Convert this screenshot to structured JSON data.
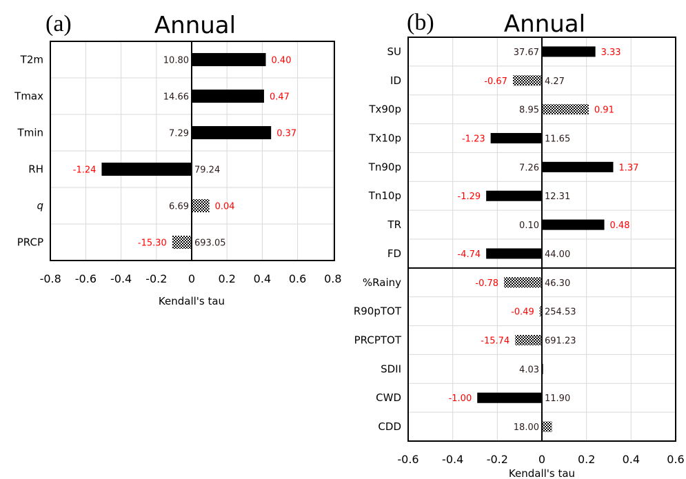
{
  "chart_data": [
    {
      "type": "bar",
      "orientation": "horizontal",
      "panel": "(a)",
      "title": "Annual",
      "xlabel": "Kendall's tau",
      "xlim": [
        -0.8,
        0.8
      ],
      "xticks": [
        -0.8,
        -0.6,
        -0.4,
        -0.2,
        0,
        0.2,
        0.4,
        0.6,
        0.8
      ],
      "xtick_labels": [
        "-0.8",
        "-0.6",
        "-0.4",
        "-0.2",
        "0",
        "0.2",
        "0.4",
        "0.6",
        "0.8"
      ],
      "grid": true,
      "categories": [
        "T2m",
        "Tmax",
        "Tmin",
        "RH",
        "q",
        "PRCP"
      ],
      "italic_categories": [
        "q"
      ],
      "values": [
        0.42,
        0.41,
        0.45,
        -0.51,
        0.1,
        -0.11
      ],
      "fill": [
        "solid",
        "solid",
        "solid",
        "solid",
        "checker",
        "checker"
      ],
      "mean_labels": [
        "10.80",
        "14.66",
        "7.29",
        "79.24",
        "6.69",
        "693.05"
      ],
      "trend_labels": [
        "0.40",
        "0.47",
        "0.37",
        "-1.24",
        "0.04",
        "-15.30"
      ],
      "groups": []
    },
    {
      "type": "bar",
      "orientation": "horizontal",
      "panel": "(b)",
      "title": "Annual",
      "xlabel": "Kendall's tau",
      "xlim": [
        -0.6,
        0.6
      ],
      "xticks": [
        -0.6,
        -0.4,
        -0.2,
        0,
        0.2,
        0.4,
        0.6
      ],
      "xtick_labels": [
        "-0.6",
        "-0.4",
        "-0.2",
        "0",
        "0.2",
        "0.4",
        "0.6"
      ],
      "grid": true,
      "categories": [
        "SU",
        "ID",
        "Tx90p",
        "Tx10p",
        "Tn90p",
        "Tn10p",
        "TR",
        "FD",
        "%Rainy",
        "R90pTOT",
        "PRCPTOT",
        "SDII",
        "CWD",
        "CDD"
      ],
      "italic_categories": [],
      "values": [
        0.24,
        -0.13,
        0.21,
        -0.23,
        0.32,
        -0.25,
        0.28,
        -0.25,
        -0.17,
        -0.01,
        -0.12,
        0.005,
        -0.29,
        0.045
      ],
      "fill": [
        "solid",
        "checker",
        "checker",
        "solid",
        "solid",
        "solid",
        "solid",
        "solid",
        "checker",
        "checker",
        "checker",
        "solid",
        "solid",
        "checker"
      ],
      "mean_labels": [
        "37.67",
        "4.27",
        "8.95",
        "11.65",
        "7.26",
        "12.31",
        "0.10",
        "44.00",
        "46.30",
        "254.53",
        "691.23",
        "4.03",
        "11.90",
        "18.00"
      ],
      "trend_labels": [
        "3.33",
        "-0.67",
        "0.91",
        "-1.23",
        "1.37",
        "-1.29",
        "0.48",
        "-4.74",
        "-0.78",
        "-0.49",
        "-15.74",
        "",
        "-1.00",
        ""
      ],
      "groups": [
        8,
        6
      ]
    }
  ]
}
